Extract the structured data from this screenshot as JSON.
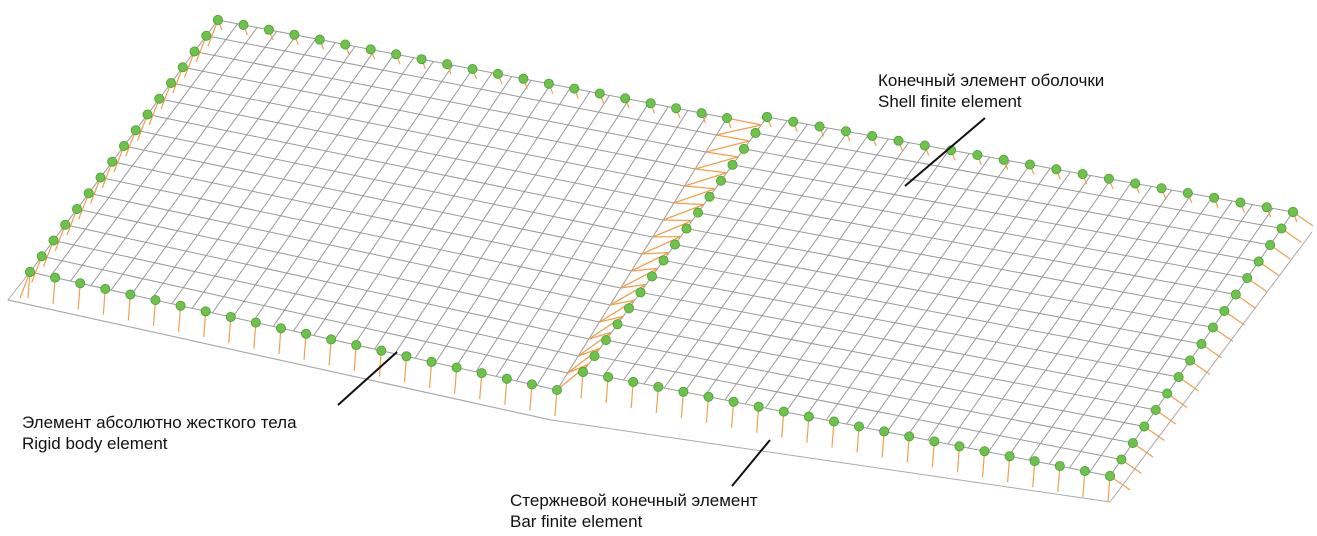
{
  "colors": {
    "mesh": "#9a9a9a",
    "nodes": "#6cc24a",
    "node_stroke": "#4e9e33",
    "bars": "#f0a050",
    "leader": "#111111",
    "text": "#111111"
  },
  "labels": {
    "shell": {
      "ru": "Конечный элемент оболочки",
      "en": "Shell finite element"
    },
    "rigid": {
      "ru": "Элемент абсолютно жесткого тела",
      "en": "Rigid body element"
    },
    "bar": {
      "ru": "Стержневой конечный элемент",
      "en": "Bar finite element"
    }
  },
  "icons": {
    "node": "green-dot-icon",
    "bar": "orange-stroke"
  }
}
